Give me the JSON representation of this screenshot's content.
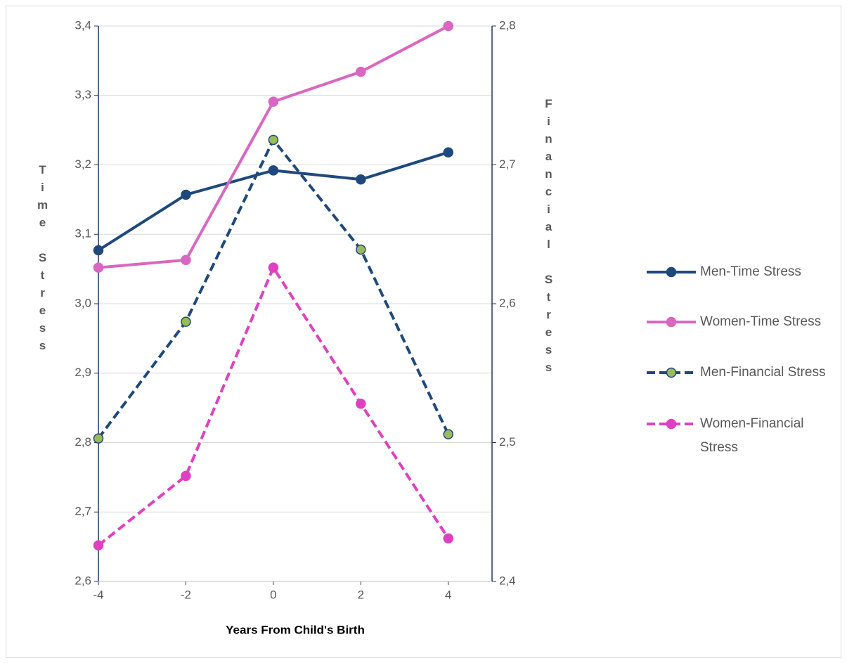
{
  "chart_data": {
    "type": "line",
    "x_label": "Years From Child's Birth",
    "y_label": "Time Stress",
    "y2_label": "Financial Stress",
    "x": [
      -4,
      -2,
      0,
      2,
      4
    ],
    "xlim": [
      -4,
      5
    ],
    "xticks": [
      -4,
      -2,
      0,
      2,
      4
    ],
    "ylim": [
      2.6,
      3.4
    ],
    "yticks": [
      {
        "value": 2.6,
        "label": "2,6"
      },
      {
        "value": 2.7,
        "label": "2,7"
      },
      {
        "value": 2.8,
        "label": "2,8"
      },
      {
        "value": 2.9,
        "label": "2,9"
      },
      {
        "value": 3.0,
        "label": "3,0"
      },
      {
        "value": 3.1,
        "label": "3,1"
      },
      {
        "value": 3.2,
        "label": "3,2"
      },
      {
        "value": 3.3,
        "label": "3,3"
      },
      {
        "value": 3.4,
        "label": "3,4"
      }
    ],
    "y2lim": [
      2.4,
      2.8
    ],
    "y2ticks": [
      {
        "value": 2.4,
        "label": "2,4"
      },
      {
        "value": 2.5,
        "label": "2,5"
      },
      {
        "value": 2.6,
        "label": "2,6"
      },
      {
        "value": 2.7,
        "label": "2,7"
      },
      {
        "value": 2.8,
        "label": "2,8"
      }
    ],
    "grid": true,
    "series": [
      {
        "name": "Men-Time Stress",
        "color": "#1f497d",
        "marker_color": "#1f497d",
        "dashed": false,
        "values": [
          3.077,
          3.157,
          3.192,
          3.179,
          3.218
        ]
      },
      {
        "name": "Women-Time Stress",
        "color": "#d966c0",
        "marker_color": "#d966c0",
        "dashed": false,
        "values": [
          3.052,
          3.063,
          3.291,
          3.334,
          3.4
        ]
      },
      {
        "name": "Men-Financial Stress",
        "color": "#1f497d",
        "marker_color": "#9bbb59",
        "dashed": true,
        "axis": "y2",
        "values": [
          2.503,
          2.587,
          2.718,
          2.639,
          2.506
        ]
      },
      {
        "name": "Women-Financial Stress",
        "color": "#e040c0",
        "marker_color": "#e040c0",
        "dashed": true,
        "axis": "y2",
        "values": [
          2.426,
          2.476,
          2.626,
          2.528,
          2.431
        ]
      }
    ]
  }
}
